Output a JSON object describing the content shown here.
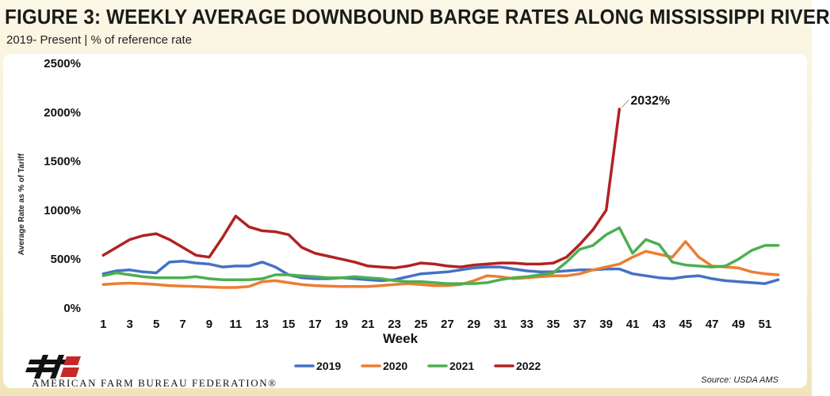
{
  "title": "FIGURE 3: WEEKLY AVERAGE DOWNBOUND BARGE RATES ALONG MISSISSIPPI RIVER",
  "subtitle": "2019- Present | % of reference rate",
  "source": "Source: USDA AMS",
  "organization": "AMERICAN FARM BUREAU FEDERATION®",
  "logo_text": "FB",
  "chart_data": {
    "type": "line",
    "xlabel": "Week",
    "ylabel": "Average Rate as % of Tariff",
    "ylim": [
      0,
      2500
    ],
    "xlim": [
      0.5,
      52.5
    ],
    "yticks": [
      0,
      500,
      1000,
      1500,
      2000,
      2500
    ],
    "ytick_labels": [
      "0%",
      "500%",
      "1000%",
      "1500%",
      "2000%",
      "2500%"
    ],
    "xticks": [
      1,
      3,
      5,
      7,
      9,
      11,
      13,
      15,
      17,
      19,
      21,
      23,
      25,
      27,
      29,
      31,
      33,
      35,
      37,
      39,
      41,
      43,
      45,
      47,
      49,
      51
    ],
    "grid": false,
    "legend": "bottom",
    "annotations": [
      {
        "text": "2032%",
        "x": 40,
        "y": 2032
      }
    ],
    "series": [
      {
        "name": "2019",
        "color": "#4472c4",
        "values": [
          350,
          380,
          390,
          370,
          360,
          470,
          480,
          460,
          450,
          420,
          430,
          430,
          470,
          420,
          340,
          310,
          300,
          300,
          310,
          300,
          290,
          280,
          290,
          320,
          350,
          360,
          370,
          390,
          410,
          420,
          420,
          400,
          380,
          370,
          370,
          380,
          390,
          390,
          400,
          400,
          350,
          330,
          310,
          300,
          320,
          330,
          300,
          280,
          270,
          260,
          250,
          290
        ]
      },
      {
        "name": "2020",
        "color": "#ed7d31",
        "values": [
          240,
          250,
          255,
          250,
          240,
          230,
          225,
          220,
          215,
          210,
          210,
          220,
          270,
          280,
          260,
          240,
          230,
          225,
          220,
          220,
          220,
          230,
          240,
          250,
          240,
          230,
          230,
          240,
          280,
          330,
          320,
          300,
          310,
          320,
          330,
          330,
          350,
          390,
          420,
          450,
          520,
          580,
          550,
          520,
          680,
          520,
          430,
          420,
          410,
          370,
          350,
          340
        ]
      },
      {
        "name": "2021",
        "color": "#4caf50",
        "values": [
          330,
          360,
          340,
          320,
          310,
          310,
          310,
          320,
          300,
          290,
          290,
          290,
          300,
          340,
          340,
          330,
          320,
          310,
          310,
          320,
          310,
          300,
          280,
          270,
          270,
          260,
          250,
          250,
          250,
          260,
          290,
          310,
          320,
          340,
          360,
          470,
          600,
          640,
          750,
          820,
          560,
          700,
          650,
          470,
          440,
          430,
          420,
          430,
          500,
          590,
          640,
          640
        ]
      },
      {
        "name": "2022",
        "color": "#b22222",
        "values": [
          540,
          620,
          700,
          740,
          760,
          700,
          620,
          540,
          520,
          720,
          940,
          830,
          790,
          780,
          750,
          620,
          560,
          530,
          500,
          470,
          430,
          420,
          410,
          430,
          460,
          450,
          430,
          420,
          440,
          450,
          460,
          460,
          450,
          450,
          460,
          520,
          650,
          800,
          1000,
          2032
        ]
      }
    ]
  }
}
